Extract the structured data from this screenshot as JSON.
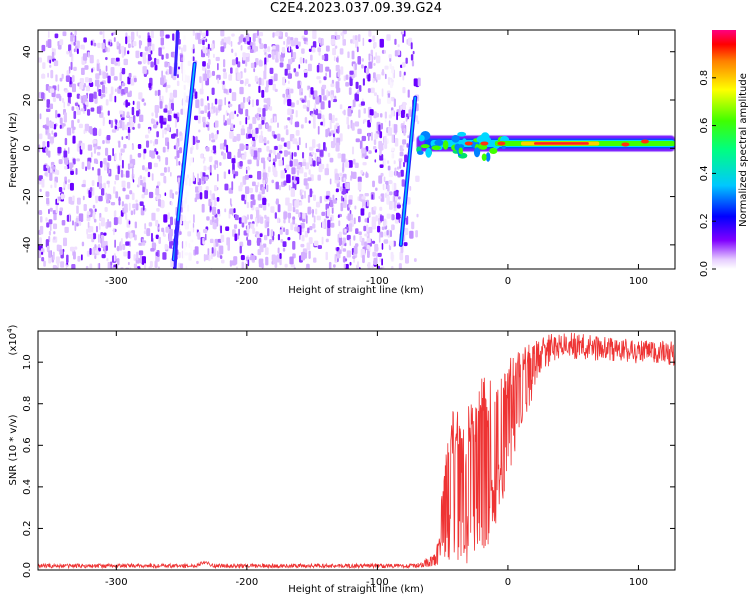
{
  "title": "C2E4.2023.037.09.39.G24",
  "chart_data": [
    {
      "type": "heatmap",
      "xlabel": "Height of straight line (km)",
      "ylabel": "Frequency (Hz)",
      "xlim": [
        -360,
        128
      ],
      "ylim": [
        -50,
        49
      ],
      "xticks": [
        -300,
        -200,
        -100,
        0,
        100
      ],
      "yticks": [
        -40,
        -20,
        0,
        20,
        40
      ],
      "colorbar": {
        "label": "Normalized spectral amplitude",
        "range": [
          0.0,
          1.0
        ],
        "ticks": [
          0.0,
          0.2,
          0.4,
          0.6,
          0.8
        ]
      },
      "features": {
        "noise_region_x": [
          -360,
          -67
        ],
        "signal_band_x": [
          -70,
          128
        ],
        "signal_band_freq": [
          0,
          4
        ],
        "streak_1": {
          "x": [
            -256,
            -240
          ],
          "y": [
            -46,
            35
          ]
        },
        "streak_2": {
          "x": [
            -82,
            -71
          ],
          "y": [
            -40,
            21
          ]
        }
      }
    },
    {
      "type": "line",
      "xlabel": "Height of straight line (km)",
      "ylabel": "SNR (10 * v/v)",
      "y_multiplier_label": "(x10",
      "y_multiplier_exp": "4",
      "xlim": [
        -360,
        128
      ],
      "ylim": [
        0,
        1.15
      ],
      "xticks": [
        -300,
        -200,
        -100,
        0,
        100
      ],
      "yticks": [
        0.0,
        0.2,
        0.4,
        0.6,
        0.8,
        1.0
      ],
      "series": [
        {
          "color": "#ee3333",
          "envelope": [
            {
              "x": -360,
              "low": 0.01,
              "high": 0.03
            },
            {
              "x": -240,
              "low": 0.01,
              "high": 0.03
            },
            {
              "x": -232,
              "low": 0.03,
              "high": 0.05
            },
            {
              "x": -225,
              "low": 0.01,
              "high": 0.03
            },
            {
              "x": -70,
              "low": 0.01,
              "high": 0.03
            },
            {
              "x": -55,
              "low": 0.02,
              "high": 0.08
            },
            {
              "x": -48,
              "low": 0.05,
              "high": 0.55
            },
            {
              "x": -42,
              "low": 0.0,
              "high": 0.85
            },
            {
              "x": -35,
              "low": 0.0,
              "high": 0.7
            },
            {
              "x": -25,
              "low": 0.05,
              "high": 0.9
            },
            {
              "x": -15,
              "low": 0.1,
              "high": 0.95
            },
            {
              "x": -5,
              "low": 0.3,
              "high": 1.0
            },
            {
              "x": 5,
              "low": 0.55,
              "high": 1.05
            },
            {
              "x": 15,
              "low": 0.75,
              "high": 1.1
            },
            {
              "x": 25,
              "low": 0.95,
              "high": 1.12
            },
            {
              "x": 40,
              "low": 1.02,
              "high": 1.15
            },
            {
              "x": 80,
              "low": 1.0,
              "high": 1.12
            },
            {
              "x": 128,
              "low": 0.98,
              "high": 1.1
            }
          ]
        }
      ]
    }
  ]
}
